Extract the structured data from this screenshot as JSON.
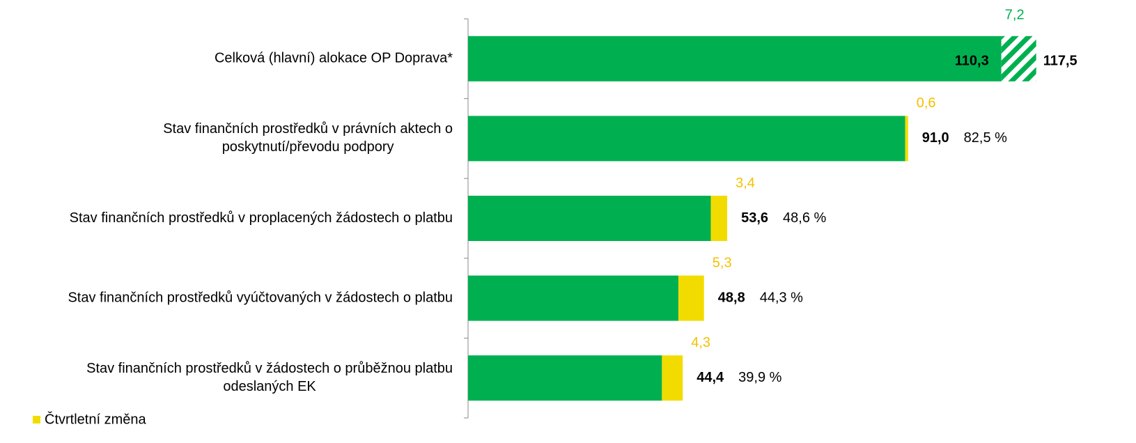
{
  "chart_data": {
    "type": "stacked-bar-horizontal",
    "categories": [
      [
        "Celková (hlavní) alokace OP Doprava*"
      ],
      [
        "Stav finančních prostředků v právních aktech o",
        "poskytnutí/převodu podpory"
      ],
      [
        "Stav finančních prostředků v proplacených žádostech o platbu"
      ],
      [
        "Stav finančních prostředků vyúčtovaných v žádostech o platbu"
      ],
      [
        "Stav finančních prostředků v žádostech o průběžnou platbu",
        "odeslaných EK"
      ]
    ],
    "series": [
      {
        "color": "#00b050",
        "values": [
          110.3,
          90.4,
          50.2,
          43.5,
          40.1
        ],
        "value_labels": [
          "110,3",
          null,
          null,
          null,
          null
        ]
      },
      {
        "name": "Čtvrtletní změna",
        "color": "#f2dc00",
        "label_color": "#f5c000",
        "values": [
          null,
          0.6,
          3.4,
          5.3,
          4.3
        ],
        "value_labels": [
          null,
          "0,6",
          "3,4",
          "5,3",
          "4,3"
        ]
      },
      {
        "color": "#00b050",
        "pattern": "hatch",
        "values": [
          7.2,
          null,
          null,
          null,
          null
        ],
        "value_labels": [
          "7,2",
          null,
          null,
          null,
          null
        ]
      }
    ],
    "totals": [
      117.5,
      91.0,
      53.6,
      48.8,
      44.4
    ],
    "totals_labels": [
      "117,5",
      "91,0",
      "53,6",
      "48,8",
      "44,4"
    ],
    "shares": [
      null,
      82.5,
      48.6,
      44.3,
      39.9
    ],
    "shares_labels": [
      null,
      "82,5 %",
      "48,6 %",
      "44,3 %",
      "39,9 %"
    ],
    "xlim": [
      0,
      138
    ],
    "legend": "bottom-left"
  }
}
